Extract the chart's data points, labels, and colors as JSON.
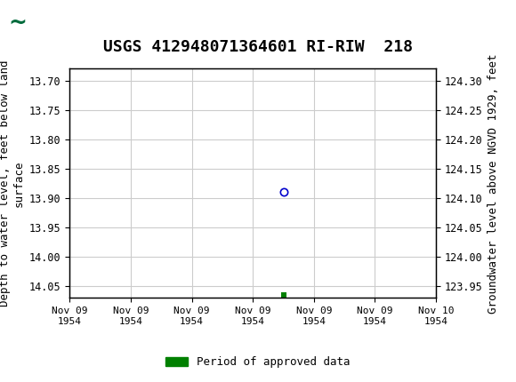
{
  "title": "USGS 412948071364601 RI-RIW  218",
  "ylabel_left": "Depth to water level, feet below land\nsurface",
  "ylabel_right": "Groundwater level above NGVD 1929, feet",
  "ylim_left": [
    14.07,
    13.68
  ],
  "ylim_right": [
    123.93,
    124.32
  ],
  "yticks_left": [
    13.7,
    13.75,
    13.8,
    13.85,
    13.9,
    13.95,
    14.0,
    14.05
  ],
  "yticks_right": [
    124.3,
    124.25,
    124.2,
    124.15,
    124.1,
    124.05,
    124.0,
    123.95
  ],
  "data_point_x": 3.5,
  "data_point_y": 13.89,
  "green_point_x": 3.5,
  "green_point_y": 14.065,
  "xtick_positions": [
    0,
    1,
    2,
    3,
    4,
    5,
    6
  ],
  "xtick_labels": [
    "Nov 09\n1954",
    "Nov 09\n1954",
    "Nov 09\n1954",
    "Nov 09\n1954",
    "Nov 09\n1954",
    "Nov 09\n1954",
    "Nov 10\n1954"
  ],
  "header_color": "#006b3c",
  "grid_color": "#cccccc",
  "bg_color": "#ffffff",
  "plot_bg_color": "#ffffff",
  "circle_color": "#0000cc",
  "green_square_color": "#008000",
  "legend_label": "Period of approved data",
  "title_fontsize": 13,
  "axis_label_fontsize": 9,
  "tick_fontsize": 8.5
}
